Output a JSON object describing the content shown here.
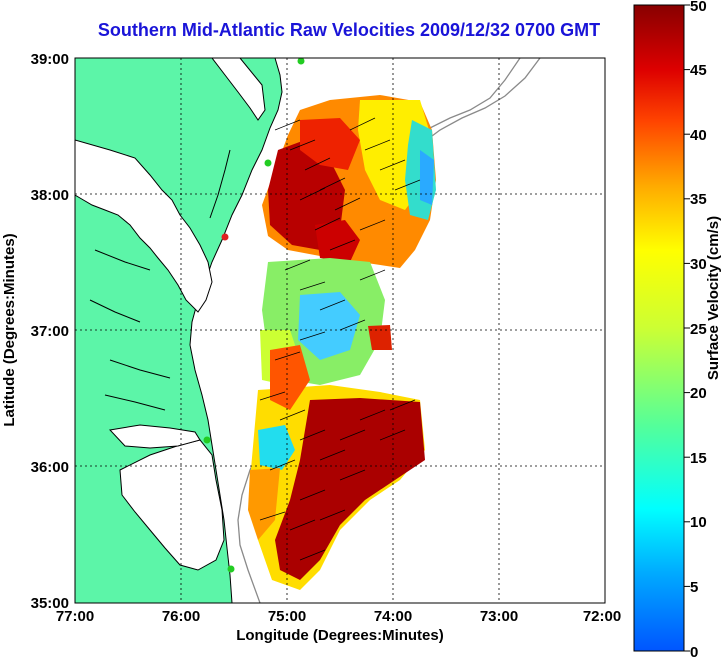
{
  "title": "Southern Mid-Atlantic Raw Velocities 2009/12/32 0700 GMT",
  "map": {
    "xlabel": "Longitude (Degrees:Minutes)",
    "ylabel": "Latitude (Degrees:Minutes)",
    "x_ticks": [
      "77:00",
      "76:00",
      "75:00",
      "74:00",
      "73:00",
      "72:00"
    ],
    "y_ticks": [
      "39:00",
      "38:00",
      "37:00",
      "36:00",
      "35:00"
    ],
    "lon_range": [
      -77,
      -72
    ],
    "lat_range": [
      35,
      39
    ],
    "grid": true,
    "colors": {
      "land": "#5cf5a8",
      "coast": "#000000",
      "bathymetry": "#8a8a8a",
      "arrows": "#000000",
      "station_green": "#22cc22",
      "station_red": "#e02020"
    }
  },
  "colorbar": {
    "label": "Surface Velocity (cm/s)",
    "ticks": [
      "0",
      "5",
      "10",
      "15",
      "20",
      "25",
      "30",
      "35",
      "40",
      "45",
      "50"
    ],
    "range": [
      0,
      50
    ],
    "colormap": "jet"
  }
}
